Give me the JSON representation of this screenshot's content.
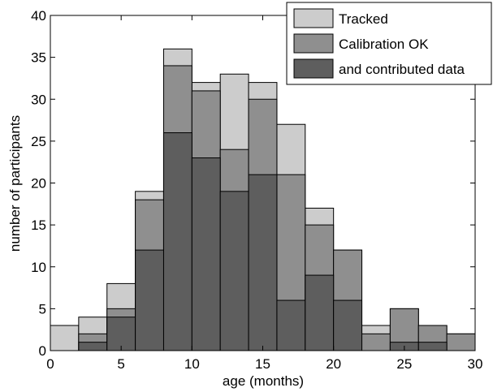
{
  "chart_data": {
    "type": "bar",
    "title": "",
    "xlabel": "age (months)",
    "ylabel": "number of participants",
    "xlim": [
      0,
      30
    ],
    "ylim": [
      0,
      40
    ],
    "xticks": [
      0,
      5,
      10,
      15,
      20,
      25,
      30
    ],
    "yticks": [
      0,
      5,
      10,
      15,
      20,
      25,
      30,
      35,
      40
    ],
    "grid": false,
    "legend_position": "top-right",
    "bin_width": 2,
    "bin_starts": [
      0,
      2,
      4,
      6,
      8,
      10,
      12,
      14,
      16,
      18,
      20,
      22,
      24,
      26,
      28
    ],
    "series": [
      {
        "name": "Tracked",
        "color": "#cccccc",
        "values": [
          3,
          4,
          8,
          19,
          36,
          32,
          33,
          32,
          27,
          17,
          12,
          3,
          5,
          3,
          2
        ]
      },
      {
        "name": "Calibration OK",
        "color": "#8f8f8f",
        "values": [
          0,
          2,
          5,
          18,
          34,
          31,
          24,
          30,
          21,
          15,
          12,
          2,
          5,
          3,
          2
        ]
      },
      {
        "name": "and contributed data",
        "color": "#5e5e5e",
        "values": [
          0,
          1,
          4,
          12,
          26,
          23,
          19,
          21,
          6,
          9,
          6,
          0,
          1,
          1,
          0
        ]
      }
    ]
  }
}
